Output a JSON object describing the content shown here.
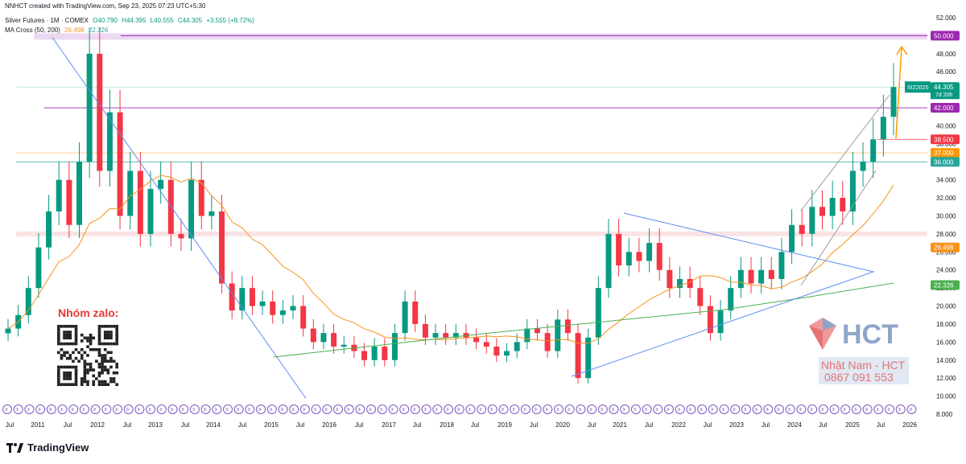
{
  "header": {
    "created_by": "NNHCT created with TradingView.com, Sep 23, 2025 07:23 UTC+5:30",
    "symbol_line": "Silver Futures · 1M · COMEX",
    "open": "O40.790",
    "high": "H44.395",
    "low": "L40.555",
    "close": "C44.305",
    "change": "+3.555 (+8.72%)",
    "ma_label": "MA Cross (50, 200)",
    "ma50_value": "26.498",
    "ma200_value": "22.326"
  },
  "watermark": {
    "zalo_title": "Nhóm zalo:",
    "brand": "HCT",
    "name": "Nhật Nam - HCT",
    "phone": "0867 091 553"
  },
  "footer": {
    "brand": "TradingView"
  },
  "colors": {
    "up": "#089981",
    "down": "#f23645",
    "ma50": "#f7931a",
    "ma200": "#4caf50",
    "trendline": "#5b8def",
    "purple": "#9c27b0",
    "red_level": "#f23645",
    "orange_level": "#ff9800",
    "teal_level": "#26a69a"
  },
  "chart_data": {
    "type": "candlestick",
    "ylim": [
      8,
      52
    ],
    "y_ticks": [
      "52.000",
      "50.000",
      "48.000",
      "46.000",
      "44.000",
      "42.000",
      "40.000",
      "38.000",
      "36.000",
      "34.000",
      "32.000",
      "30.000",
      "28.000",
      "26.000",
      "24.000",
      "22.000",
      "20.000",
      "18.000",
      "16.000",
      "14.000",
      "12.000",
      "10.000",
      "8.000"
    ],
    "x_ticks": [
      "Jul",
      "2011",
      "Jul",
      "2012",
      "Jul",
      "2013",
      "Jul",
      "2014",
      "Jul",
      "2015",
      "Jul",
      "2016",
      "Jul",
      "2017",
      "Jul",
      "2018",
      "Jul",
      "2019",
      "Jul",
      "2020",
      "Jul",
      "2021",
      "Jul",
      "2022",
      "Jul",
      "2023",
      "Jul",
      "2024",
      "Jul",
      "2025",
      "Jul",
      "2026"
    ],
    "price_labels": [
      {
        "text": "50.000",
        "value": 50.0,
        "color": "#9c27b0"
      },
      {
        "text": "44.305",
        "value": 44.305,
        "color": "#089981"
      },
      {
        "text": "42.000",
        "value": 42.0,
        "color": "#9c27b0"
      },
      {
        "text": "38.500",
        "value": 38.5,
        "color": "#f23645"
      },
      {
        "text": "37.000",
        "value": 37.0,
        "color": "#ff9800"
      },
      {
        "text": "36.000",
        "value": 36.0,
        "color": "#26a69a"
      },
      {
        "text": "26.498",
        "value": 26.498,
        "color": "#f7931a"
      },
      {
        "text": "22.326",
        "value": 22.326,
        "color": "#4caf50"
      }
    ],
    "symbol_badge": "SIZ2025",
    "countdown": "7d 20h",
    "candles_monthly_close_sample": [
      17.5,
      19.0,
      22.0,
      26.5,
      30.5,
      34.0,
      29.0,
      36.0,
      48.0,
      35.0,
      41.5,
      30.0,
      35.0,
      28.0,
      33.0,
      34.0,
      28.0,
      27.5,
      34.0,
      30.0,
      30.5,
      22.5,
      19.5,
      22.0,
      20.0,
      20.5,
      19.0,
      19.5,
      20.0,
      17.5,
      16.0,
      17.0,
      15.5,
      15.7,
      15.0,
      14.0,
      15.5,
      14.0,
      17.0,
      20.5,
      18.0,
      16.5,
      17.0,
      16.5,
      17.0,
      16.5,
      16.0,
      15.5,
      14.5,
      15.0,
      16.0,
      17.5,
      17.0,
      15.0,
      18.5,
      17.0,
      12.0,
      16.5,
      22.0,
      28.0,
      24.5,
      26.0,
      25.0,
      27.0,
      24.0,
      22.0,
      23.0,
      22.0,
      20.0,
      17.0,
      19.5,
      22.0,
      24.0,
      22.5,
      24.0,
      23.0,
      26.0,
      29.0,
      28.0,
      31.0,
      30.0,
      32.0,
      30.5,
      35.0,
      36.0,
      38.5,
      41.0,
      44.305
    ]
  }
}
